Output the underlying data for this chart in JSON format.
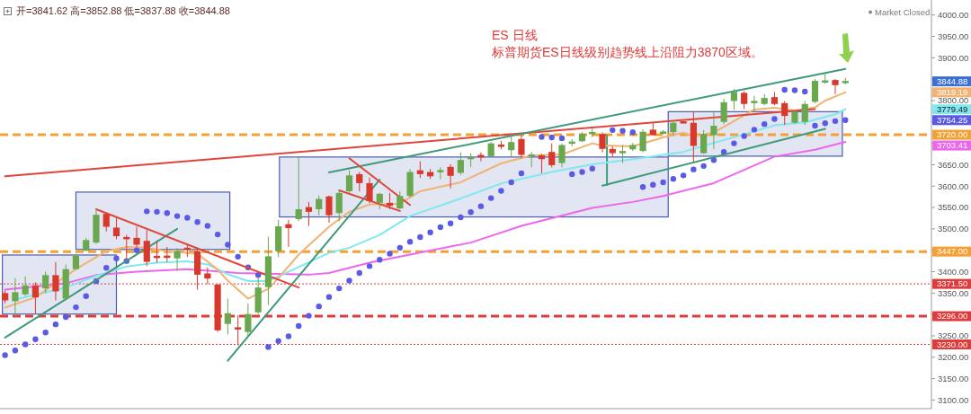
{
  "chart_data": {
    "type": "candlestick",
    "title": "ES 日线",
    "subtitle": "标普期货ES日线级别趋势线上沿阻力3870区域。",
    "annotations": [
      "开=3841.62 高=3852.88 低=3837.88 收=3844.88",
      "Market Closed",
      "3844.88",
      "3703.41",
      "3779.49",
      "3819.19",
      "3754.25"
    ],
    "ylim": [
      3080,
      4035
    ],
    "tick_labels": "y",
    "yticks": [
      {
        "value": 3100,
        "label": "3100.00"
      },
      {
        "value": 3150,
        "label": "3150.00"
      },
      {
        "value": 3200,
        "label": "3200.00"
      },
      {
        "value": 3250,
        "label": "3250.00"
      },
      {
        "value": 3300,
        "label": null
      },
      {
        "value": 3350,
        "label": "3350.00"
      },
      {
        "value": 3400,
        "label": "3400.00"
      },
      {
        "value": 3450,
        "label": null
      },
      {
        "value": 3500,
        "label": "3500.00"
      },
      {
        "value": 3550,
        "label": "3550.00"
      },
      {
        "value": 3600,
        "label": "3600.00"
      },
      {
        "value": 3650,
        "label": "3650.00"
      },
      {
        "value": 3700,
        "label": null
      },
      {
        "value": 3750,
        "label": null
      },
      {
        "value": 3800,
        "label": "3800.00"
      },
      {
        "value": 3850,
        "label": null
      },
      {
        "value": 3900,
        "label": "3900.00"
      },
      {
        "value": 3950,
        "label": "3950.00"
      },
      {
        "value": 4000,
        "label": "4000.00"
      }
    ],
    "categories": [
      null,
      null,
      null,
      null,
      null,
      null,
      null,
      null,
      null,
      null,
      null,
      null,
      null,
      null,
      null,
      null,
      null,
      null,
      null,
      null,
      null,
      null,
      null,
      null,
      null,
      null,
      null,
      null,
      null,
      null,
      null,
      null,
      null,
      null,
      null,
      null,
      null,
      null,
      null,
      null,
      null,
      null,
      null,
      null,
      null,
      null,
      null,
      null,
      null,
      null,
      null,
      null,
      null,
      null,
      null,
      null,
      null,
      null,
      null,
      null,
      null,
      null,
      null,
      null,
      null,
      null,
      null,
      null,
      null,
      null,
      null,
      null,
      null,
      null,
      null,
      null,
      null,
      null,
      null,
      null,
      null,
      null,
      null,
      null,
      null,
      null,
      null,
      null,
      null,
      null,
      null,
      null
    ],
    "ohlc": [
      [
        3350,
        3356,
        3326,
        3333
      ],
      [
        3331,
        3385,
        3295,
        3352
      ],
      [
        3347,
        3389,
        3343,
        3368
      ],
      [
        3368,
        3375,
        3301,
        3340
      ],
      [
        3361,
        3400,
        3350,
        3392
      ],
      [
        3392,
        3423,
        3333,
        3354
      ],
      [
        3337,
        3417,
        3336,
        3406
      ],
      [
        3406,
        3442,
        3405,
        3437
      ],
      [
        3449,
        3479,
        3448,
        3474
      ],
      [
        3468,
        3547,
        3465,
        3533
      ],
      [
        3535,
        3538,
        3494,
        3505
      ],
      [
        3503,
        3526,
        3476,
        3483
      ],
      [
        3481,
        3486,
        3431,
        3476
      ],
      [
        3479,
        3505,
        3458,
        3463
      ],
      [
        3472,
        3497,
        3413,
        3423
      ],
      [
        3436,
        3473,
        3421,
        3433
      ],
      [
        3437,
        3458,
        3423,
        3433
      ],
      [
        3431,
        3455,
        3402,
        3448
      ],
      [
        3455,
        3463,
        3434,
        3452
      ],
      [
        3448,
        3452,
        3358,
        3393
      ],
      [
        3396,
        3410,
        3371,
        3384
      ],
      [
        3370,
        3371,
        3259,
        3263
      ],
      [
        3278,
        3337,
        3253,
        3303
      ],
      [
        3270,
        3298,
        3228,
        3265
      ],
      [
        3259,
        3326,
        3249,
        3301
      ],
      [
        3305,
        3385,
        3301,
        3363
      ],
      [
        3364,
        3482,
        3322,
        3436
      ],
      [
        3448,
        3521,
        3434,
        3506
      ],
      [
        3511,
        3521,
        3458,
        3502
      ],
      [
        3523,
        3668,
        3518,
        3546
      ],
      [
        3551,
        3563,
        3507,
        3540
      ],
      [
        3546,
        3578,
        3532,
        3570
      ],
      [
        3576,
        3578,
        3515,
        3532
      ],
      [
        3537,
        3591,
        3518,
        3584
      ],
      [
        3588,
        3637,
        3584,
        3625
      ],
      [
        3628,
        3633,
        3588,
        3607
      ],
      [
        3607,
        3620,
        3560,
        3565
      ],
      [
        3561,
        3584,
        3546,
        3582
      ],
      [
        3561,
        3584,
        3546,
        3554
      ],
      [
        3548,
        3588,
        3546,
        3577
      ],
      [
        3577,
        3640,
        3574,
        3633
      ],
      [
        3637,
        3658,
        3619,
        3628
      ],
      [
        3633,
        3640,
        3617,
        3623
      ],
      [
        3633,
        3644,
        3616,
        3637
      ],
      [
        3645,
        3651,
        3595,
        3624
      ],
      [
        3631,
        3679,
        3626,
        3661
      ],
      [
        3663,
        3677,
        3645,
        3668
      ],
      [
        3673,
        3679,
        3658,
        3667
      ],
      [
        3670,
        3703,
        3668,
        3700
      ],
      [
        3696,
        3706,
        3686,
        3693
      ],
      [
        3684,
        3717,
        3668,
        3703
      ],
      [
        3710,
        3720,
        3665,
        3673
      ],
      [
        3670,
        3680,
        3644,
        3673
      ],
      [
        3672,
        3675,
        3630,
        3663
      ],
      [
        3680,
        3700,
        3644,
        3649
      ],
      [
        3654,
        3700,
        3644,
        3696
      ],
      [
        3700,
        3710,
        3693,
        3703
      ],
      [
        3705,
        3726,
        3703,
        3722
      ],
      [
        3722,
        3735,
        3714,
        3726
      ],
      [
        3722,
        3726,
        3679,
        3687
      ],
      [
        3687,
        3693,
        3668,
        3677
      ],
      [
        3677,
        3696,
        3654,
        3682
      ],
      [
        3686,
        3701,
        3682,
        3696
      ],
      [
        3682,
        3733,
        3679,
        3727
      ],
      [
        3732,
        3747,
        3718,
        3719
      ],
      [
        3724,
        3731,
        3721,
        3726
      ],
      [
        3726,
        3754,
        3719,
        3748
      ],
      [
        3750,
        3752,
        3746,
        3748
      ],
      [
        3748,
        3773,
        3656,
        3694
      ],
      [
        3677,
        3731,
        3675,
        3722
      ],
      [
        3719,
        3776,
        3687,
        3741
      ],
      [
        3750,
        3804,
        3745,
        3796
      ],
      [
        3799,
        3827,
        3778,
        3820
      ],
      [
        3818,
        3822,
        3780,
        3792
      ],
      [
        3796,
        3811,
        3773,
        3797
      ],
      [
        3792,
        3815,
        3789,
        3806
      ],
      [
        3808,
        3820,
        3789,
        3792
      ],
      [
        3794,
        3799,
        3743,
        3764
      ],
      [
        3748,
        3778,
        3745,
        3774
      ],
      [
        3750,
        3799,
        3743,
        3792
      ],
      [
        3797,
        3850,
        3794,
        3846
      ],
      [
        3843,
        3864,
        3839,
        3846
      ],
      [
        3848,
        3850,
        3815,
        3836
      ],
      [
        3841.62,
        3852.88,
        3837.88,
        3844.88
      ],
      null,
      null,
      null,
      null,
      null,
      null,
      null,
      null
    ],
    "colors": [
      "#d9392c",
      "#6aa84f",
      "#6aa84f",
      "#d9392c",
      "#6aa84f",
      "#d9392c",
      "#6aa84f",
      "#6aa84f",
      "#6aa84f",
      "#6aa84f",
      "#d9392c",
      "#d9392c",
      "#d9392c",
      "#d9392c",
      "#d9392c",
      "#d9392c",
      "#d9392c",
      "#6aa84f",
      "#d9392c",
      "#d9392c",
      "#d9392c",
      "#d9392c",
      "#6aa84f",
      "#d9392c",
      "#6aa84f",
      "#6aa84f",
      "#6aa84f",
      "#6aa84f",
      "#d9392c",
      "#6aa84f",
      "#d9392c",
      "#6aa84f",
      "#d9392c",
      "#6aa84f",
      "#6aa84f",
      "#d9392c",
      "#d9392c",
      "#6aa84f",
      "#d9392c",
      "#6aa84f",
      "#6aa84f",
      "#d9392c",
      "#d9392c",
      "#6aa84f",
      "#d9392c",
      "#6aa84f",
      "#6aa84f",
      "#d9392c",
      "#6aa84f",
      "#d9392c",
      "#6aa84f",
      "#d9392c",
      "#6aa84f",
      "#d9392c",
      "#d9392c",
      "#6aa84f",
      "#6aa84f",
      "#6aa84f",
      "#6aa84f",
      "#d9392c",
      "#d9392c",
      "#6aa84f",
      "#6aa84f",
      "#6aa84f",
      "#d9392c",
      "#6aa84f",
      "#6aa84f",
      "#d9392c",
      "#d9392c",
      "#6aa84f",
      "#6aa84f",
      "#6aa84f",
      "#6aa84f",
      "#d9392c",
      "#6aa84f",
      "#6aa84f",
      "#d9392c",
      "#d9392c",
      "#6aa84f",
      "#6aa84f",
      "#6aa84f",
      "#6aa84f",
      "#d9392c",
      "#6aa84f",
      null,
      null,
      null,
      null,
      null,
      null,
      null,
      null
    ],
    "series": [
      {
        "type": "line",
        "color": "#ee66ee",
        "values": [
          3358,
          null,
          null,
          null,
          null,
          null,
          3373,
          null,
          null,
          3392,
          null,
          null,
          null,
          3400,
          null,
          null,
          null,
          null,
          3406,
          null,
          null,
          null,
          null,
          3397,
          null,
          null,
          null,
          null,
          null,
          null,
          3393,
          null,
          3397,
          null,
          null,
          null,
          3421,
          null,
          null,
          null,
          3440,
          null,
          null,
          null,
          null,
          null,
          3468,
          null,
          null,
          null,
          null,
          3507,
          null,
          null,
          null,
          null,
          null,
          null,
          3549,
          null,
          null,
          null,
          3563,
          null,
          null,
          3577,
          null,
          null,
          null,
          null,
          3607,
          null,
          null,
          null,
          null,
          null,
          3669,
          null,
          null,
          null,
          3685,
          null,
          null,
          3703.41,
          null,
          null,
          null,
          null,
          null,
          null,
          null,
          null
        ]
      },
      {
        "type": "line",
        "color": "#7fe8f0",
        "values": [
          null,
          3335,
          null,
          null,
          null,
          null,
          3363,
          null,
          null,
          3390,
          null,
          null,
          3412,
          null,
          null,
          3421,
          null,
          null,
          3424,
          null,
          3417,
          null,
          3394,
          null,
          3378,
          null,
          3378,
          null,
          3400,
          null,
          null,
          null,
          3444,
          null,
          3456,
          null,
          null,
          3486,
          null,
          null,
          3530,
          null,
          null,
          null,
          null,
          3571,
          null,
          null,
          null,
          3606,
          null,
          null,
          null,
          null,
          3633,
          null,
          null,
          null,
          3651,
          null,
          null,
          null,
          3663,
          null,
          null,
          null,
          null,
          3680,
          null,
          null,
          3701,
          null,
          null,
          3721,
          null,
          null,
          3742,
          null,
          null,
          3749,
          null,
          null,
          3768,
          3779.49,
          null,
          null,
          null,
          null,
          null,
          null,
          null,
          null
        ]
      },
      {
        "type": "line",
        "color": "#f2b272",
        "values": [
          3316,
          null,
          null,
          3340,
          null,
          null,
          null,
          3406,
          null,
          null,
          3448,
          null,
          3458,
          null,
          3456,
          null,
          3448,
          null,
          null,
          3442,
          null,
          3405,
          3379,
          null,
          3337,
          null,
          3360,
          3385,
          null,
          3440,
          null,
          null,
          3505,
          null,
          3540,
          null,
          3557,
          null,
          null,
          3559,
          null,
          3588,
          null,
          null,
          null,
          3609,
          null,
          null,
          null,
          3653,
          null,
          null,
          3672,
          null,
          null,
          3674,
          null,
          null,
          3700,
          3695,
          null,
          null,
          3693,
          null,
          null,
          3714,
          null,
          3725,
          3716,
          null,
          3725,
          null,
          3752,
          null,
          3779,
          null,
          3783,
          null,
          3777,
          null,
          3784,
          3800,
          null,
          3819.19,
          null,
          null,
          null,
          null,
          null,
          null,
          null,
          null
        ]
      },
      {
        "type": "scatter",
        "color": "#5a5ae6",
        "marker": "circle",
        "values": [
          3205,
          3216,
          3230,
          3242,
          3258,
          3277,
          3294,
          3317,
          3343,
          3378,
          3409,
          3431,
          3425,
          3450,
          3541,
          3540,
          3537,
          3530,
          3526,
          3516,
          3507,
          3487,
          3463,
          3435,
          3410,
          3392,
          3224,
          3238,
          3249,
          3273,
          3297,
          3319,
          3341,
          3361,
          3379,
          3397,
          3413,
          3428,
          3442,
          3456,
          3470,
          3481,
          3492,
          3504,
          3513,
          3527,
          3539,
          3553,
          3572,
          3589,
          3609,
          3630,
          null,
          3715,
          3714,
          3712,
          3628,
          3633,
          3641,
          null,
          3731,
          3729,
          3726,
          3598,
          3603,
          3609,
          3617,
          3625,
          3639,
          3647,
          3661,
          3680,
          3700,
          3717,
          3732,
          3745,
          3757,
          3825,
          3824,
          3821,
          3741,
          3747,
          3752,
          3754.25,
          null,
          null,
          null,
          null,
          null,
          null,
          null,
          null
        ]
      },
      {
        "type": "line",
        "color": "#e0453a",
        "values": [
          3623,
          null,
          null,
          null,
          null,
          null,
          null,
          null,
          null,
          null,
          null,
          null,
          null,
          null,
          null,
          null,
          null,
          null,
          null,
          null,
          null,
          null,
          null,
          null,
          null,
          null,
          null,
          null,
          null,
          null,
          null,
          null,
          null,
          null,
          null,
          null,
          null,
          null,
          null,
          null,
          null,
          null,
          null,
          null,
          null,
          null,
          null,
          null,
          null,
          null,
          null,
          null,
          null,
          null,
          null,
          null,
          null,
          null,
          null,
          null,
          null,
          null,
          null,
          null,
          null,
          null,
          null,
          null,
          null,
          null,
          null,
          null,
          null,
          null,
          null,
          null,
          null,
          null,
          null,
          null,
          3780,
          null,
          null,
          null,
          null,
          null,
          null,
          null,
          null,
          null,
          null,
          null
        ]
      },
      {
        "type": "line",
        "color": "#3f9a7c",
        "values": [
          null,
          null,
          null,
          null,
          null,
          null,
          null,
          null,
          null,
          null,
          null,
          null,
          null,
          null,
          null,
          null,
          null,
          null,
          null,
          null,
          null,
          null,
          null,
          null,
          null,
          null,
          null,
          null,
          null,
          null,
          null,
          null,
          3632,
          null,
          null,
          null,
          null,
          null,
          null,
          null,
          null,
          null,
          null,
          null,
          null,
          null,
          null,
          null,
          null,
          null,
          null,
          null,
          null,
          null,
          null,
          null,
          null,
          null,
          null,
          null,
          null,
          null,
          null,
          null,
          null,
          null,
          null,
          null,
          null,
          null,
          null,
          null,
          null,
          null,
          null,
          null,
          null,
          null,
          null,
          null,
          null,
          null,
          null,
          3874,
          null,
          null,
          null,
          null,
          null,
          null,
          null,
          null
        ]
      },
      {
        "type": "line",
        "color": "#3f9a7c",
        "values": [
          null,
          null,
          null,
          null,
          null,
          null,
          null,
          null,
          null,
          null,
          null,
          null,
          null,
          null,
          null,
          null,
          null,
          null,
          null,
          null,
          null,
          null,
          null,
          null,
          null,
          null,
          null,
          null,
          null,
          null,
          null,
          null,
          null,
          null,
          null,
          null,
          null,
          null,
          null,
          null,
          null,
          null,
          null,
          null,
          null,
          null,
          null,
          null,
          null,
          null,
          null,
          null,
          null,
          null,
          null,
          null,
          null,
          null,
          null,
          3601,
          null,
          null,
          null,
          null,
          null,
          null,
          null,
          null,
          null,
          null,
          null,
          null,
          null,
          null,
          null,
          null,
          null,
          null,
          null,
          null,
          null,
          3734,
          null,
          null,
          null,
          null,
          null,
          null,
          null,
          null,
          null,
          null
        ]
      },
      {
        "type": "line",
        "color": "#3f9a7c",
        "values": [
          3246,
          null,
          null,
          null,
          null,
          null,
          null,
          null,
          null,
          null,
          null,
          null,
          null,
          null,
          null,
          null,
          null,
          3500,
          null,
          null,
          null,
          null,
          null,
          null,
          null,
          null,
          null,
          null,
          null,
          null,
          null,
          null,
          null,
          null,
          null,
          null,
          null,
          null,
          null,
          null,
          null,
          null,
          null,
          null,
          null,
          null,
          null,
          null,
          null,
          null,
          null,
          null,
          null,
          null,
          null,
          null,
          null,
          null,
          null,
          null,
          null,
          null,
          null,
          null,
          null,
          null,
          null,
          null,
          null,
          null,
          null,
          null,
          null,
          null,
          null,
          null,
          null,
          null,
          null,
          null,
          null,
          null,
          null,
          null,
          null,
          null,
          null,
          null,
          null,
          null,
          null,
          null
        ]
      },
      {
        "type": "line",
        "color": "#3f9a7c",
        "values": [
          null,
          null,
          null,
          null,
          null,
          null,
          null,
          null,
          null,
          null,
          null,
          null,
          null,
          null,
          null,
          null,
          null,
          null,
          null,
          null,
          null,
          null,
          3192,
          null,
          null,
          null,
          null,
          null,
          null,
          null,
          null,
          null,
          null,
          null,
          null,
          null,
          null,
          3615,
          null,
          null,
          null,
          null,
          null,
          null,
          null,
          null,
          null,
          null,
          null,
          null,
          null,
          null,
          null,
          null,
          null,
          null,
          null,
          null,
          null,
          null,
          null,
          null,
          null,
          null,
          null,
          null,
          null,
          null,
          null,
          null,
          null,
          null,
          null,
          null,
          null,
          null,
          null,
          null,
          null,
          null,
          null,
          null,
          null,
          null,
          null,
          null,
          null,
          null,
          null,
          null,
          null,
          null
        ]
      },
      {
        "type": "line",
        "color": "#e0453a",
        "values": [
          null,
          null,
          null,
          null,
          null,
          null,
          null,
          null,
          null,
          3546,
          null,
          null,
          null,
          null,
          null,
          null,
          null,
          null,
          null,
          null,
          null,
          null,
          null,
          null,
          null,
          null,
          null,
          null,
          null,
          3363,
          null,
          null,
          null,
          null,
          null,
          null,
          null,
          null,
          null,
          null,
          null,
          null,
          null,
          null,
          null,
          null,
          null,
          null,
          null,
          null,
          null,
          null,
          null,
          null,
          null,
          null,
          null,
          null,
          null,
          null,
          null,
          null,
          null,
          null,
          null,
          null,
          null,
          null,
          null,
          null,
          null,
          null,
          null,
          null,
          null,
          null,
          null,
          null,
          null,
          null,
          null,
          null,
          null,
          null,
          null,
          null,
          null,
          null,
          null,
          null,
          null,
          null
        ]
      },
      {
        "type": "line",
        "color": "#e0453a",
        "values": [
          null,
          null,
          null,
          null,
          null,
          null,
          null,
          null,
          null,
          null,
          null,
          null,
          null,
          null,
          null,
          null,
          null,
          null,
          null,
          null,
          null,
          null,
          null,
          null,
          null,
          null,
          null,
          null,
          null,
          null,
          null,
          null,
          null,
          null,
          3665,
          null,
          null,
          null,
          null,
          null,
          3556,
          null,
          null,
          null,
          null,
          null,
          null,
          null,
          null,
          null,
          null,
          null,
          null,
          null,
          null,
          null,
          null,
          null,
          null,
          null,
          null,
          null,
          null,
          null,
          null,
          null,
          null,
          null,
          null,
          null,
          null,
          null,
          null,
          null,
          null,
          null,
          null,
          null,
          null,
          null,
          null,
          null,
          null,
          null,
          null,
          null,
          null,
          null,
          null,
          null,
          null,
          null
        ]
      },
      {
        "type": "line",
        "color": "#e0453a",
        "values": [
          null,
          null,
          null,
          null,
          null,
          null,
          null,
          null,
          null,
          null,
          null,
          null,
          null,
          null,
          null,
          null,
          null,
          null,
          null,
          null,
          null,
          null,
          null,
          null,
          null,
          null,
          null,
          null,
          null,
          null,
          null,
          null,
          null,
          3590,
          null,
          null,
          null,
          null,
          null,
          3542,
          null,
          null,
          null,
          null,
          null,
          null,
          null,
          null,
          null,
          null,
          null,
          null,
          null,
          null,
          null,
          null,
          null,
          null,
          null,
          null,
          null,
          null,
          null,
          null,
          null,
          null,
          null,
          null,
          null,
          null,
          null,
          null,
          null,
          null,
          null,
          null,
          null,
          null,
          null,
          null,
          null,
          null,
          null,
          null,
          null,
          null,
          null,
          null,
          null,
          null,
          null,
          null
        ]
      }
    ],
    "ref_lines": [
      {
        "axis": "y",
        "value": 3720,
        "label": "3720.00",
        "color": "#f5a033",
        "line_style": "dashed"
      },
      {
        "axis": "y",
        "value": 3447,
        "label": "3447.00",
        "color": "#f5a033",
        "line_style": "dashed"
      },
      {
        "axis": "y",
        "value": 3371.5,
        "label": "3371.50",
        "color": "#e03a3a",
        "line_style": "dotted"
      },
      {
        "axis": "y",
        "value": 3296,
        "label": "3296.00",
        "color": "#e03a3a",
        "line_style": "dashed"
      },
      {
        "axis": "y",
        "value": 3230,
        "label": "3230.00",
        "color": "#e03a3a",
        "line_style": "dotted"
      }
    ]
  }
}
